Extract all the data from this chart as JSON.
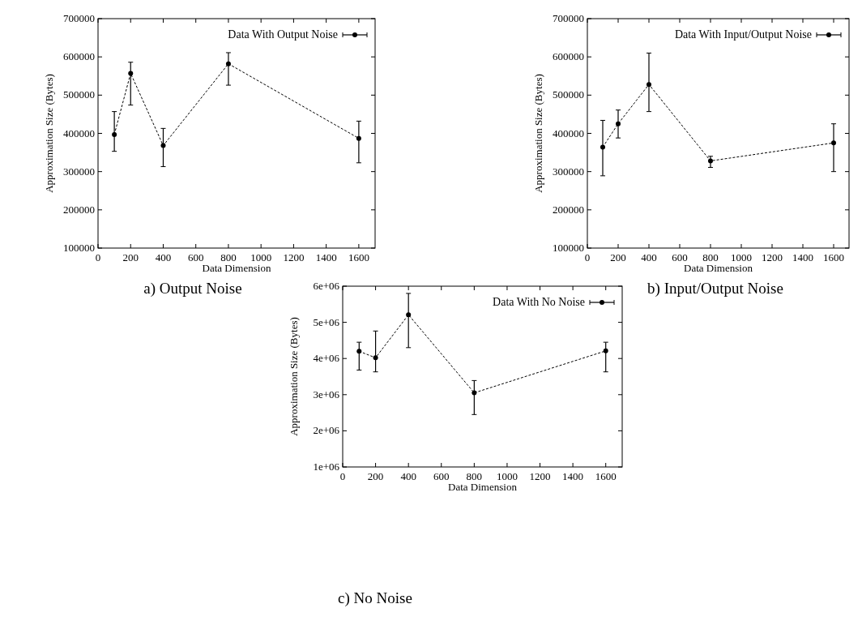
{
  "chart_data": [
    {
      "type": "line",
      "title": "a) Output Noise",
      "xlabel": "Data Dimension",
      "ylabel": "Approximation Size (Bytes)",
      "x": [
        100,
        200,
        400,
        800,
        1600
      ],
      "xlim": [
        0,
        1700
      ],
      "xticks": [
        0,
        200,
        400,
        600,
        800,
        1000,
        1200,
        1400,
        1600
      ],
      "ylim": [
        100000,
        700000
      ],
      "yticks": [
        100000,
        200000,
        300000,
        400000,
        500000,
        600000,
        700000
      ],
      "legend": "top right",
      "marker": "circle",
      "line_style": "dashed",
      "grid": false,
      "series": [
        {
          "name": "Data With Output Noise",
          "color": "#000000",
          "values": [
            397000,
            557000,
            368000,
            582000,
            387000
          ],
          "errors": [
            [
              353000,
              457000
            ],
            [
              474000,
              586000
            ],
            [
              313000,
              413000
            ],
            [
              526000,
              611000
            ],
            [
              323000,
              432000
            ]
          ]
        }
      ]
    },
    {
      "type": "line",
      "title": "b) Input/Output Noise",
      "xlabel": "Data Dimension",
      "ylabel": "Approximation Size (Bytes)",
      "x": [
        100,
        200,
        400,
        800,
        1600
      ],
      "xlim": [
        0,
        1700
      ],
      "xticks": [
        0,
        200,
        400,
        600,
        800,
        1000,
        1200,
        1400,
        1600
      ],
      "ylim": [
        100000,
        700000
      ],
      "yticks": [
        100000,
        200000,
        300000,
        400000,
        500000,
        600000,
        700000
      ],
      "legend": "top right",
      "marker": "circle",
      "line_style": "dashed",
      "grid": false,
      "series": [
        {
          "name": "Data With Input/Output Noise",
          "color": "#000000",
          "values": [
            364000,
            425000,
            528000,
            328000,
            375000
          ],
          "errors": [
            [
              289000,
              434000
            ],
            [
              388000,
              461000
            ],
            [
              457000,
              610000
            ],
            [
              311000,
              340000
            ],
            [
              300000,
              425000
            ]
          ]
        }
      ]
    },
    {
      "type": "line",
      "title": "c) No Noise",
      "xlabel": "Data Dimension",
      "ylabel": "Approximation Size (Bytes)",
      "x": [
        100,
        200,
        400,
        800,
        1600
      ],
      "xlim": [
        0,
        1700
      ],
      "xticks": [
        0,
        200,
        400,
        600,
        800,
        1000,
        1200,
        1400,
        1600
      ],
      "ylim": [
        1000000,
        6000000
      ],
      "yticks": [
        {
          "value": 1000000,
          "label": "1e+06"
        },
        {
          "value": 2000000,
          "label": "2e+06"
        },
        {
          "value": 3000000,
          "label": "3e+06"
        },
        {
          "value": 4000000,
          "label": "4e+06"
        },
        {
          "value": 5000000,
          "label": "5e+06"
        },
        {
          "value": 6000000,
          "label": "6e+06"
        }
      ],
      "legend": "top right",
      "marker": "circle",
      "line_style": "dashed",
      "grid": false,
      "series": [
        {
          "name": "Data With No Noise",
          "color": "#000000",
          "values": [
            4200000,
            4020000,
            5210000,
            3050000,
            4210000
          ],
          "errors": [
            [
              3680000,
              4450000
            ],
            [
              3630000,
              4760000
            ],
            [
              4300000,
              5800000
            ],
            [
              2450000,
              3390000
            ],
            [
              3630000,
              4450000
            ]
          ]
        }
      ]
    }
  ]
}
